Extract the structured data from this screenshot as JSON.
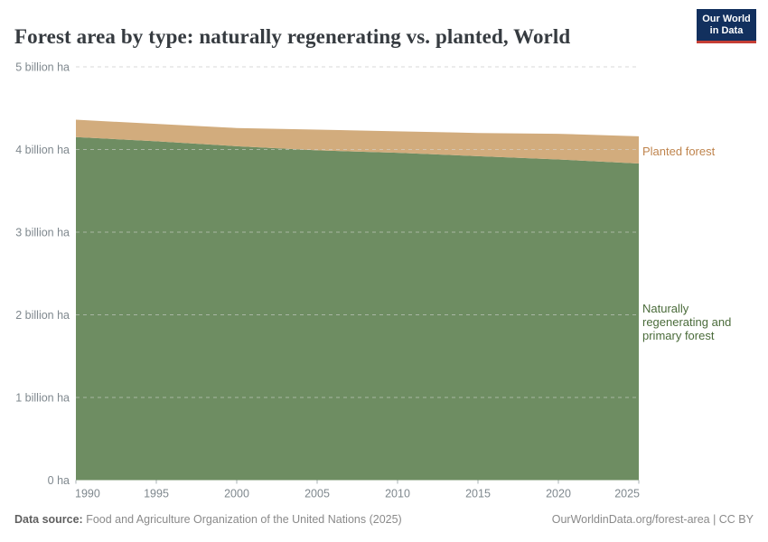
{
  "header": {
    "title": "Forest area by type: naturally regenerating vs. planted, World",
    "logo": {
      "line1": "Our World",
      "line2": "in Data"
    }
  },
  "chart_data": {
    "type": "area",
    "stacked": true,
    "title": "Forest area by type: naturally regenerating vs. planted, World",
    "x": [
      1990,
      1995,
      2000,
      2005,
      2010,
      2015,
      2020,
      2025
    ],
    "x_tick_labels": [
      "1990",
      "1995",
      "2000",
      "2005",
      "2010",
      "2015",
      "2020",
      "2025"
    ],
    "series": [
      {
        "name": "Naturally regenerating and primary forest",
        "color": "#6e8d62",
        "values": [
          4.15,
          4.1,
          4.04,
          3.99,
          3.96,
          3.92,
          3.88,
          3.83
        ]
      },
      {
        "name": "Planted forest",
        "color": "#d2ac7d",
        "values": [
          0.21,
          0.21,
          0.22,
          0.25,
          0.26,
          0.28,
          0.31,
          0.33
        ]
      }
    ],
    "values_unit": "billion ha",
    "ylim": [
      0,
      5
    ],
    "y_ticks": [
      {
        "value": 0,
        "label": "0 ha"
      },
      {
        "value": 1,
        "label": "1 billion ha"
      },
      {
        "value": 2,
        "label": "2 billion ha"
      },
      {
        "value": 3,
        "label": "3 billion ha"
      },
      {
        "value": 4,
        "label": "4 billion ha"
      },
      {
        "value": 5,
        "label": "5 billion ha"
      }
    ],
    "grid": "horizontal-dashed",
    "legend_position": "right-inline-labels"
  },
  "labels": {
    "planted": {
      "text": "Planted forest",
      "color": "#bf844d"
    },
    "natural": {
      "text": "Naturally\nregenerating and\nprimary forest",
      "color": "#4a6b3a"
    }
  },
  "footer": {
    "data_source_label": "Data source:",
    "data_source_value": " Food and Agriculture Organization of the United Nations (2025)",
    "citation": "OurWorldinData.org/forest-area | CC BY"
  },
  "colors": {
    "natural_fill": "#6e8d62",
    "planted_fill": "#d2ac7d",
    "gridline": "#d9d9d9",
    "axis_text": "#7f888e",
    "tick": "#a9b1b5",
    "title_text": "#363b40",
    "logo_bg": "#12305e",
    "logo_accent": "#c53e35"
  }
}
